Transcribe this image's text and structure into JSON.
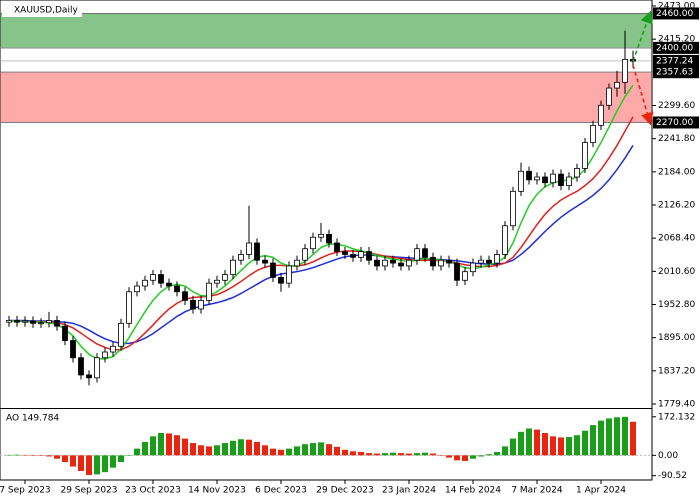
{
  "chart_data": {
    "type": "candlestick",
    "title": "XAUUSD,Daily",
    "categories": [
      null,
      null,
      "7 Sep 2023",
      null,
      null,
      null,
      null,
      null,
      null,
      null,
      "29 Sep 2023",
      null,
      null,
      null,
      null,
      null,
      null,
      null,
      "23 Oct 2023",
      null,
      null,
      null,
      null,
      null,
      null,
      null,
      "14 Nov 2023",
      null,
      null,
      null,
      null,
      null,
      null,
      null,
      "6 Dec 2023",
      null,
      null,
      null,
      null,
      null,
      null,
      null,
      "29 Dec 2023",
      null,
      null,
      null,
      null,
      null,
      null,
      null,
      "23 Jan 2024",
      null,
      null,
      null,
      null,
      null,
      null,
      null,
      "14 Feb 2024",
      null,
      null,
      null,
      null,
      null,
      null,
      null,
      "7 Mar 2024",
      null,
      null,
      null,
      null,
      null,
      null,
      null,
      "1 Apr 2024",
      null,
      null,
      null,
      null
    ],
    "open": [
      1922,
      1925,
      1922,
      1924,
      1920,
      1921,
      1925,
      1915,
      1890,
      1860,
      1830,
      1825,
      1860,
      1870,
      1880,
      1920,
      1975,
      1985,
      1995,
      2005,
      1990,
      1985,
      1975,
      1960,
      1945,
      1960,
      1990,
      1995,
      2005,
      2030,
      2040,
      2060,
      2030,
      2025,
      2000,
      1990,
      2020,
      2030,
      2050,
      2070,
      2075,
      2060,
      2045,
      2040,
      2035,
      2045,
      2030,
      2020,
      2030,
      2025,
      2020,
      2030,
      2050,
      2035,
      2020,
      2030,
      2025,
      1995,
      2010,
      2025,
      2030,
      2025,
      2040,
      2090,
      2150,
      2185,
      2170,
      2175,
      2165,
      2180,
      2160,
      2175,
      2190,
      2235,
      2265,
      2300,
      2330,
      2340,
      2380
    ],
    "high": [
      1933,
      1933,
      1932,
      1932,
      1929,
      1940,
      1933,
      1923,
      1898,
      1868,
      1838,
      1868,
      1878,
      1888,
      1928,
      1983,
      1993,
      2003,
      2013,
      2013,
      1998,
      1993,
      1983,
      1968,
      1968,
      1998,
      2003,
      2013,
      2038,
      2048,
      2125,
      2068,
      2038,
      2033,
      2008,
      2028,
      2038,
      2058,
      2078,
      2095,
      2083,
      2068,
      2053,
      2048,
      2053,
      2053,
      2038,
      2038,
      2038,
      2033,
      2038,
      2058,
      2058,
      2043,
      2038,
      2038,
      2033,
      2018,
      2033,
      2038,
      2038,
      2048,
      2098,
      2158,
      2200,
      2193,
      2183,
      2183,
      2188,
      2188,
      2183,
      2198,
      2243,
      2273,
      2308,
      2338,
      2360,
      2430,
      2395
    ],
    "low": [
      1914,
      1914,
      1914,
      1912,
      1912,
      1913,
      1907,
      1882,
      1852,
      1822,
      1812,
      1817,
      1852,
      1862,
      1872,
      1912,
      1967,
      1977,
      1987,
      1982,
      1977,
      1967,
      1952,
      1937,
      1937,
      1952,
      1982,
      1987,
      1997,
      2022,
      2032,
      2022,
      2017,
      1992,
      1975,
      1982,
      2012,
      2022,
      2042,
      2062,
      2052,
      2037,
      2032,
      2027,
      2027,
      2022,
      2012,
      2012,
      2017,
      2012,
      2012,
      2022,
      2027,
      2012,
      2012,
      2017,
      1985,
      1987,
      2002,
      2017,
      2017,
      2017,
      2032,
      2082,
      2142,
      2162,
      2162,
      2157,
      2157,
      2152,
      2152,
      2167,
      2182,
      2227,
      2257,
      2292,
      2315,
      2320,
      2365
    ],
    "close": [
      1925,
      1922,
      1924,
      1920,
      1921,
      1925,
      1915,
      1890,
      1860,
      1830,
      1825,
      1860,
      1870,
      1880,
      1920,
      1975,
      1985,
      1995,
      2005,
      1990,
      1985,
      1975,
      1960,
      1945,
      1960,
      1990,
      1995,
      2005,
      2030,
      2040,
      2060,
      2030,
      2025,
      2000,
      1990,
      2020,
      2030,
      2050,
      2070,
      2075,
      2060,
      2045,
      2040,
      2035,
      2045,
      2030,
      2020,
      2030,
      2025,
      2020,
      2030,
      2050,
      2035,
      2020,
      2030,
      2025,
      1995,
      2010,
      2025,
      2030,
      2025,
      2040,
      2090,
      2150,
      2185,
      2170,
      2175,
      2165,
      2180,
      2160,
      2175,
      2190,
      2235,
      2265,
      2300,
      2330,
      2340,
      2380,
      2377
    ],
    "lines": [
      {
        "color": "#1f2fd6",
        "values": [
          1925,
          1925,
          1925,
          1924,
          1924,
          1924,
          1923,
          1922,
          1920,
          1915,
          1908,
          1900,
          1893,
          1888,
          1885,
          1885,
          1888,
          1894,
          1902,
          1912,
          1922,
          1932,
          1940,
          1946,
          1950,
          1953,
          1956,
          1960,
          1965,
          1972,
          1980,
          1988,
          1996,
          2002,
          2006,
          2008,
          2010,
          2013,
          2017,
          2022,
          2027,
          2032,
          2036,
          2038,
          2039,
          2039,
          2038,
          2037,
          2036,
          2035,
          2034,
          2033,
          2033,
          2032,
          2031,
          2030,
          2029,
          2027,
          2025,
          2024,
          2023,
          2023,
          2025,
          2030,
          2040,
          2052,
          2066,
          2080,
          2093,
          2105,
          2115,
          2124,
          2133,
          2143,
          2155,
          2170,
          2188,
          2208,
          2230
        ]
      },
      {
        "color": "#e0201b",
        "values": [
          1924,
          1924,
          1923,
          1923,
          1923,
          1922,
          1921,
          1918,
          1912,
          1903,
          1893,
          1884,
          1878,
          1874,
          1874,
          1880,
          1890,
          1903,
          1917,
          1932,
          1945,
          1955,
          1962,
          1965,
          1966,
          1967,
          1970,
          1976,
          1984,
          1993,
          2003,
          2012,
          2018,
          2021,
          2021,
          2020,
          2020,
          2022,
          2027,
          2034,
          2040,
          2044,
          2046,
          2046,
          2045,
          2043,
          2040,
          2037,
          2035,
          2033,
          2031,
          2030,
          2030,
          2030,
          2029,
          2028,
          2025,
          2022,
          2020,
          2019,
          2019,
          2021,
          2025,
          2035,
          2052,
          2072,
          2092,
          2110,
          2124,
          2135,
          2143,
          2150,
          2160,
          2172,
          2188,
          2208,
          2230,
          2255,
          2280
        ]
      },
      {
        "color": "#22cc22",
        "values": [
          1925,
          1924,
          1923,
          1922,
          1922,
          1921,
          1918,
          1910,
          1898,
          1880,
          1866,
          1858,
          1858,
          1862,
          1875,
          1895,
          1918,
          1940,
          1960,
          1975,
          1985,
          1988,
          1985,
          1975,
          1968,
          1968,
          1975,
          1985,
          1998,
          2012,
          2025,
          2035,
          2038,
          2035,
          2025,
          2020,
          2020,
          2028,
          2040,
          2052,
          2058,
          2058,
          2055,
          2050,
          2046,
          2043,
          2038,
          2035,
          2032,
          2030,
          2028,
          2030,
          2033,
          2033,
          2030,
          2028,
          2022,
          2017,
          2015,
          2018,
          2022,
          2026,
          2035,
          2060,
          2095,
          2125,
          2145,
          2158,
          2165,
          2168,
          2170,
          2175,
          2188,
          2210,
          2235,
          2262,
          2290,
          2315,
          2335
        ]
      }
    ],
    "zones": [
      {
        "from": 2400,
        "to": 2460,
        "color": "#86c48a"
      },
      {
        "from": 2270,
        "to": 2357.63,
        "color": "#ffaaaa"
      }
    ],
    "levels": [
      {
        "value": 2460,
        "label": "2460.00"
      },
      {
        "value": 2400,
        "label": "2400.00"
      },
      {
        "value": 2377.24,
        "label": "2377.24"
      },
      {
        "value": 2357.63,
        "label": "2357.63"
      },
      {
        "value": 2270,
        "label": "2270.00"
      }
    ],
    "ylim": [
      1779.4,
      2473.0
    ],
    "yticks": [
      {
        "value": 2473.0,
        "label": "2473.00"
      },
      {
        "value": 2415.2,
        "label": "2415.20"
      },
      {
        "value": 2299.6,
        "label": "2299.60"
      },
      {
        "value": 2241.8,
        "label": "2241.80"
      },
      {
        "value": 2184.0,
        "label": "2184.00"
      },
      {
        "value": 2126.2,
        "label": "2126.20"
      },
      {
        "value": 2068.4,
        "label": "2068.40"
      },
      {
        "value": 2010.6,
        "label": "2010.60"
      },
      {
        "value": 1952.8,
        "label": "1952.80"
      },
      {
        "value": 1895.0,
        "label": "1895.00"
      },
      {
        "value": 1837.2,
        "label": "1837.20"
      },
      {
        "value": 1779.4,
        "label": "1779.40"
      }
    ],
    "indicator": {
      "type": "bar",
      "label": "AO 149.784",
      "up_color": "#1a9e1a",
      "down_color": "#e8260f",
      "values": [
        2,
        3,
        2,
        1,
        0,
        -5,
        -15,
        -30,
        -50,
        -70,
        -88,
        -85,
        -75,
        -55,
        -30,
        0,
        30,
        60,
        85,
        100,
        98,
        90,
        75,
        55,
        45,
        40,
        45,
        55,
        65,
        72,
        70,
        60,
        45,
        30,
        25,
        30,
        40,
        50,
        55,
        58,
        50,
        38,
        25,
        18,
        15,
        10,
        8,
        10,
        12,
        10,
        8,
        10,
        12,
        8,
        0,
        -10,
        -22,
        -25,
        -15,
        -5,
        5,
        15,
        40,
        75,
        105,
        120,
        115,
        100,
        85,
        80,
        82,
        90,
        110,
        135,
        155,
        165,
        170,
        172,
        150
      ],
      "ylim": [
        -110,
        198
      ],
      "yticks": [
        172.132,
        {
          "value": 0,
          "label": "0.00"
        },
        -90.52
      ]
    }
  }
}
